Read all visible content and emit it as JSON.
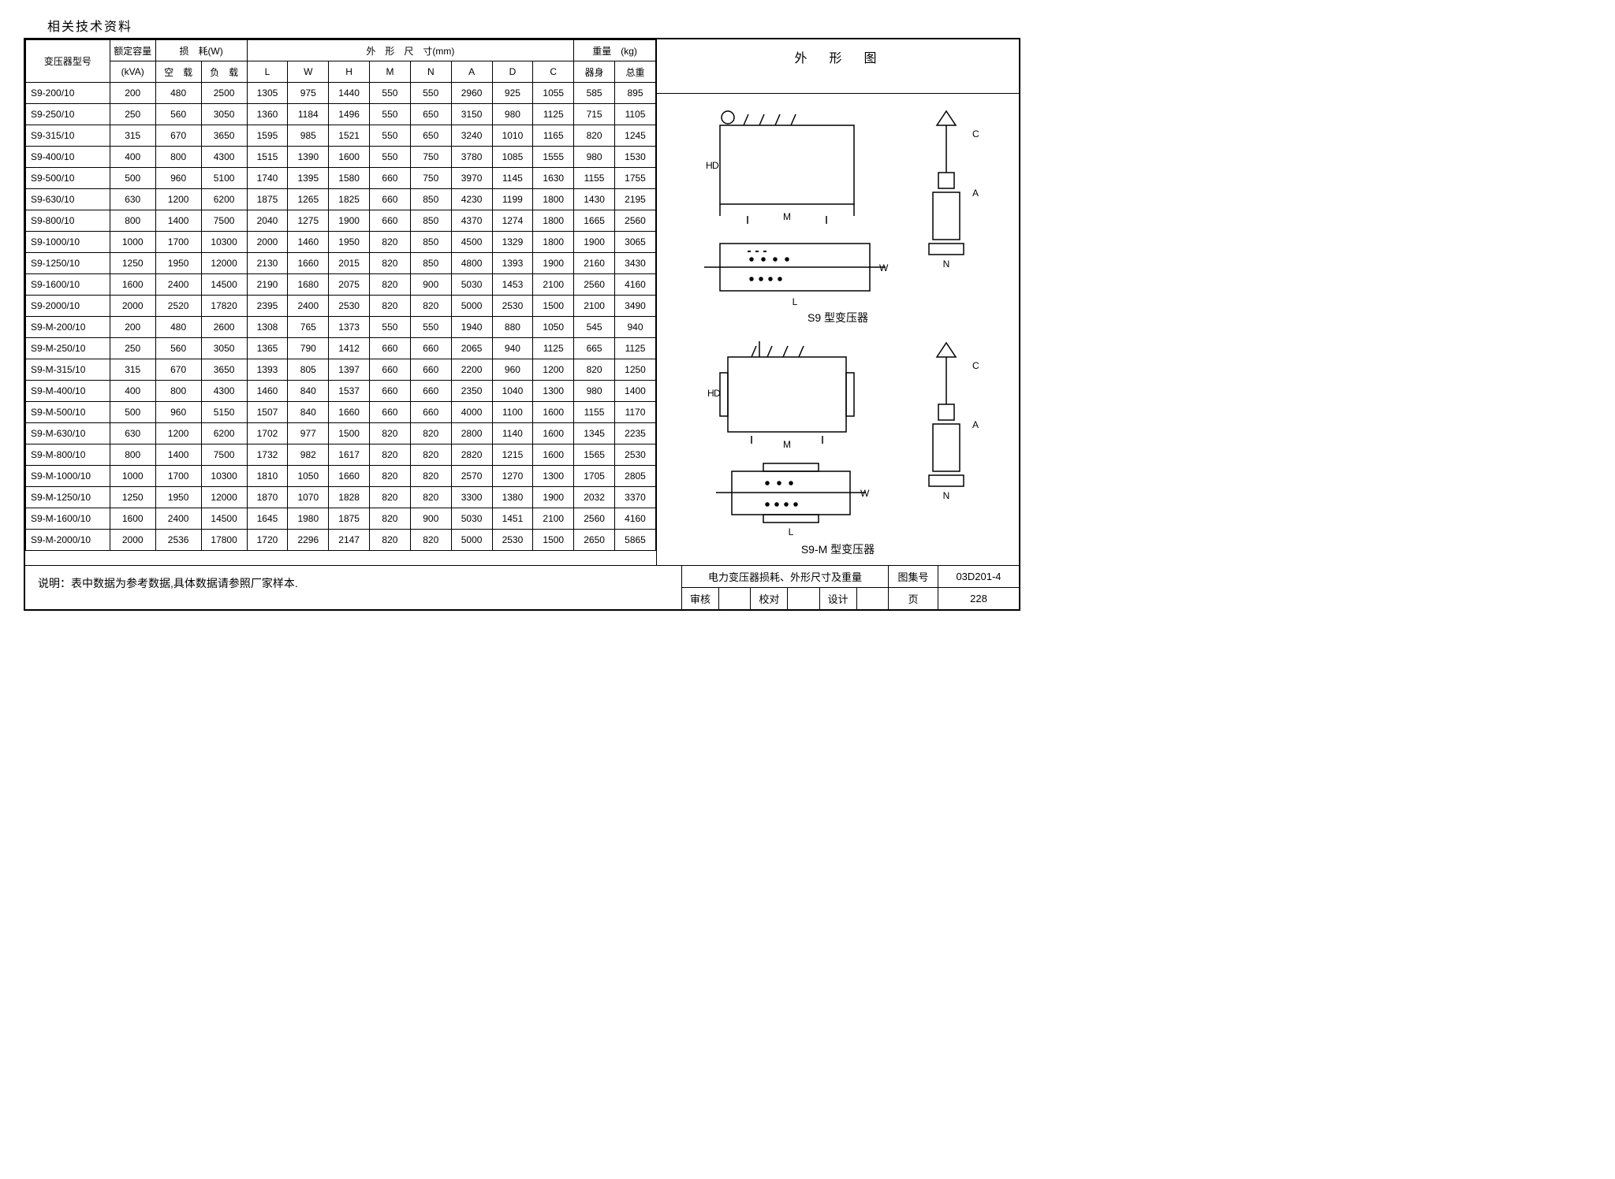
{
  "doc_title": "相关技术资料",
  "table": {
    "header_groups": {
      "model": "变压器型号",
      "capacity_top": "额定容量",
      "capacity_unit": "(kVA)",
      "loss_top": "损　耗(W)",
      "loss_noload": "空　载",
      "loss_load": "负　载",
      "dim_top": "外　形　尺　寸(mm)",
      "dim_cols": [
        "L",
        "W",
        "H",
        "M",
        "N",
        "A",
        "D",
        "C"
      ],
      "weight_top": "重量　(kg)",
      "weight_body": "器身",
      "weight_total": "总重"
    },
    "rows": [
      [
        "S9-200/10",
        200,
        480,
        2500,
        1305,
        975,
        1440,
        550,
        550,
        2960,
        925,
        1055,
        585,
        895
      ],
      [
        "S9-250/10",
        250,
        560,
        3050,
        1360,
        1184,
        1496,
        550,
        650,
        3150,
        980,
        1125,
        715,
        1105
      ],
      [
        "S9-315/10",
        315,
        670,
        3650,
        1595,
        985,
        1521,
        550,
        650,
        3240,
        1010,
        1165,
        820,
        1245
      ],
      [
        "S9-400/10",
        400,
        800,
        4300,
        1515,
        1390,
        1600,
        550,
        750,
        3780,
        1085,
        1555,
        980,
        1530
      ],
      [
        "S9-500/10",
        500,
        960,
        5100,
        1740,
        1395,
        1580,
        660,
        750,
        3970,
        1145,
        1630,
        1155,
        1755
      ],
      [
        "S9-630/10",
        630,
        1200,
        6200,
        1875,
        1265,
        1825,
        660,
        850,
        4230,
        1199,
        1800,
        1430,
        2195
      ],
      [
        "S9-800/10",
        800,
        1400,
        7500,
        2040,
        1275,
        1900,
        660,
        850,
        4370,
        1274,
        1800,
        1665,
        2560
      ],
      [
        "S9-1000/10",
        1000,
        1700,
        10300,
        2000,
        1460,
        1950,
        820,
        850,
        4500,
        1329,
        1800,
        1900,
        3065
      ],
      [
        "S9-1250/10",
        1250,
        1950,
        12000,
        2130,
        1660,
        2015,
        820,
        850,
        4800,
        1393,
        1900,
        2160,
        3430
      ],
      [
        "S9-1600/10",
        1600,
        2400,
        14500,
        2190,
        1680,
        2075,
        820,
        900,
        5030,
        1453,
        2100,
        2560,
        4160
      ],
      [
        "S9-2000/10",
        2000,
        2520,
        17820,
        2395,
        2400,
        2530,
        820,
        820,
        5000,
        2530,
        1500,
        2100,
        3490
      ],
      [
        "S9-M-200/10",
        200,
        480,
        2600,
        1308,
        765,
        1373,
        550,
        550,
        1940,
        880,
        1050,
        545,
        940
      ],
      [
        "S9-M-250/10",
        250,
        560,
        3050,
        1365,
        790,
        1412,
        660,
        660,
        2065,
        940,
        1125,
        665,
        1125
      ],
      [
        "S9-M-315/10",
        315,
        670,
        3650,
        1393,
        805,
        1397,
        660,
        660,
        2200,
        960,
        1200,
        820,
        1250
      ],
      [
        "S9-M-400/10",
        400,
        800,
        4300,
        1460,
        840,
        1537,
        660,
        660,
        2350,
        1040,
        1300,
        980,
        1400
      ],
      [
        "S9-M-500/10",
        500,
        960,
        5150,
        1507,
        840,
        1660,
        660,
        660,
        4000,
        1100,
        1600,
        1155,
        1170
      ],
      [
        "S9-M-630/10",
        630,
        1200,
        6200,
        1702,
        977,
        1500,
        820,
        820,
        2800,
        1140,
        1600,
        1345,
        2235
      ],
      [
        "S9-M-800/10",
        800,
        1400,
        7500,
        1732,
        982,
        1617,
        820,
        820,
        2820,
        1215,
        1600,
        1565,
        2530
      ],
      [
        "S9-M-1000/10",
        1000,
        1700,
        10300,
        1810,
        1050,
        1660,
        820,
        820,
        2570,
        1270,
        1300,
        1705,
        2805
      ],
      [
        "S9-M-1250/10",
        1250,
        1950,
        12000,
        1870,
        1070,
        1828,
        820,
        820,
        3300,
        1380,
        1900,
        2032,
        3370
      ],
      [
        "S9-M-1600/10",
        1600,
        2400,
        14500,
        1645,
        1980,
        1875,
        820,
        900,
        5030,
        1451,
        2100,
        2560,
        4160
      ],
      [
        "S9-M-2000/10",
        2000,
        2536,
        17800,
        1720,
        2296,
        2147,
        820,
        820,
        5000,
        2530,
        1500,
        2650,
        5865
      ]
    ]
  },
  "diagrams": {
    "title": "外　形　图",
    "s9_label": "S9 型变压器",
    "s9m_label": "S9-M 型变压器",
    "dim_labels": [
      "H",
      "D",
      "M",
      "L",
      "W",
      "A",
      "C",
      "N"
    ]
  },
  "note": "说明：表中数据为参考数据,具体数据请参照厂家样本.",
  "footer": {
    "main_title": "电力变压器损耗、外形尺寸及重量",
    "set_label": "图集号",
    "set_value": "03D201-4",
    "review_label": "审核",
    "check_label": "校对",
    "design_label": "设计",
    "page_label": "页",
    "page_value": "228"
  }
}
